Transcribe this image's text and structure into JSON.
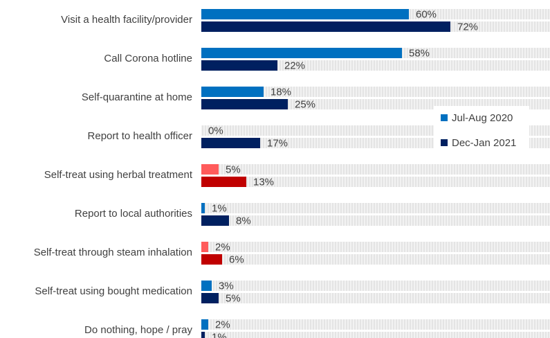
{
  "chart_data": {
    "type": "bar",
    "orientation": "horizontal",
    "categories": [
      "Visit a health facility/provider",
      "Call Corona hotline",
      "Self-quarantine at home",
      "Report to health officer",
      "Self-treat using herbal treatment",
      "Report to local authorities",
      "Self-treat through steam inhalation",
      "Self-treat using bought medication",
      "Do nothing, hope / pray"
    ],
    "series": [
      {
        "name": "Jul-Aug 2020",
        "color": "#0070c0",
        "values": [
          60,
          58,
          18,
          0,
          5,
          1,
          2,
          3,
          2
        ],
        "value_labels": [
          "60%",
          "58%",
          "18%",
          "0%",
          "5%",
          "1%",
          "2%",
          "3%",
          "2%"
        ],
        "colors": [
          "#0070c0",
          "#0070c0",
          "#0070c0",
          "#0070c0",
          "#ff5b5b",
          "#0070c0",
          "#ff5b5b",
          "#0070c0",
          "#0070c0"
        ]
      },
      {
        "name": "Dec-Jan 2021",
        "color": "#002060",
        "values": [
          72,
          22,
          25,
          17,
          13,
          8,
          6,
          5,
          1
        ],
        "value_labels": [
          "72%",
          "22%",
          "25%",
          "17%",
          "13%",
          "8%",
          "6%",
          "5%",
          "1%"
        ],
        "colors": [
          "#002060",
          "#002060",
          "#002060",
          "#002060",
          "#c00000",
          "#002060",
          "#c00000",
          "#002060",
          "#002060"
        ]
      }
    ],
    "xlim": [
      0,
      100
    ],
    "legend": "right"
  }
}
